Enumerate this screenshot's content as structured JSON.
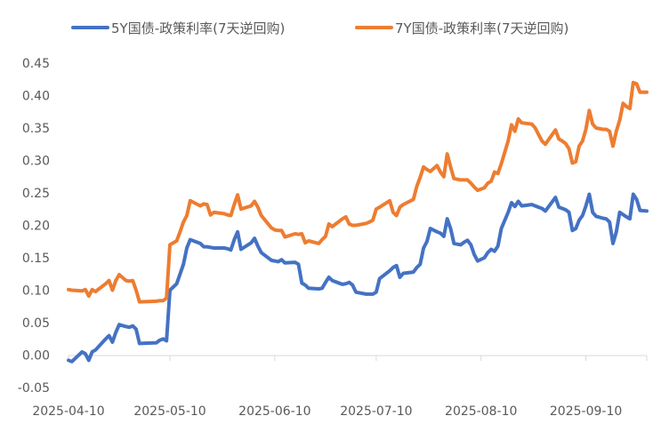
{
  "chart_data": {
    "type": "line",
    "title": "",
    "xlabel": "",
    "ylabel": "",
    "ylim": [
      -0.05,
      0.45
    ],
    "yticks": [
      "-0.05",
      "0.00",
      "0.05",
      "0.10",
      "0.15",
      "0.20",
      "0.25",
      "0.30",
      "0.35",
      "0.40",
      "0.45"
    ],
    "xticks": [
      "2025-04-10",
      "2025-05-10",
      "2025-06-10",
      "2025-07-10",
      "2025-08-10",
      "2025-09-10"
    ],
    "x_range": [
      "2025-04-10",
      "2025-09-28"
    ],
    "grid": false,
    "legend_position": "top",
    "series": [
      {
        "name": "5Y国债-政策利率(7天逆回购)",
        "color": "#4472C4",
        "points": [
          [
            "2025-04-10",
            -0.008
          ],
          [
            "2025-04-11",
            -0.01
          ],
          [
            "2025-04-14",
            0.005
          ],
          [
            "2025-04-15",
            0.002
          ],
          [
            "2025-04-16",
            -0.008
          ],
          [
            "2025-04-17",
            0.005
          ],
          [
            "2025-04-18",
            0.008
          ],
          [
            "2025-04-21",
            0.025
          ],
          [
            "2025-04-22",
            0.03
          ],
          [
            "2025-04-23",
            0.02
          ],
          [
            "2025-04-24",
            0.035
          ],
          [
            "2025-04-25",
            0.047
          ],
          [
            "2025-04-27",
            0.044
          ],
          [
            "2025-04-28",
            0.043
          ],
          [
            "2025-04-29",
            0.045
          ],
          [
            "2025-04-30",
            0.04
          ],
          [
            "2025-05-01",
            0.018
          ],
          [
            "2025-05-06",
            0.019
          ],
          [
            "2025-05-07",
            0.023
          ],
          [
            "2025-05-08",
            0.025
          ],
          [
            "2025-05-09",
            0.022
          ],
          [
            "2025-05-10",
            0.1
          ],
          [
            "2025-05-12",
            0.11
          ],
          [
            "2025-05-13",
            0.125
          ],
          [
            "2025-05-14",
            0.14
          ],
          [
            "2025-05-15",
            0.165
          ],
          [
            "2025-05-16",
            0.178
          ],
          [
            "2025-05-19",
            0.172
          ],
          [
            "2025-05-20",
            0.167
          ],
          [
            "2025-05-21",
            0.167
          ],
          [
            "2025-05-22",
            0.166
          ],
          [
            "2025-05-23",
            0.165
          ],
          [
            "2025-05-26",
            0.165
          ],
          [
            "2025-05-27",
            0.164
          ],
          [
            "2025-05-28",
            0.162
          ],
          [
            "2025-05-29",
            0.178
          ],
          [
            "2025-05-30",
            0.19
          ],
          [
            "2025-05-31",
            0.163
          ],
          [
            "2025-06-03",
            0.173
          ],
          [
            "2025-06-04",
            0.18
          ],
          [
            "2025-06-05",
            0.168
          ],
          [
            "2025-06-06",
            0.158
          ],
          [
            "2025-06-09",
            0.146
          ],
          [
            "2025-06-10",
            0.145
          ],
          [
            "2025-06-11",
            0.144
          ],
          [
            "2025-06-12",
            0.147
          ],
          [
            "2025-06-13",
            0.142
          ],
          [
            "2025-06-16",
            0.143
          ],
          [
            "2025-06-17",
            0.14
          ],
          [
            "2025-06-18",
            0.111
          ],
          [
            "2025-06-19",
            0.108
          ],
          [
            "2025-06-20",
            0.103
          ],
          [
            "2025-06-23",
            0.102
          ],
          [
            "2025-06-24",
            0.103
          ],
          [
            "2025-06-25",
            0.112
          ],
          [
            "2025-06-26",
            0.12
          ],
          [
            "2025-06-27",
            0.115
          ],
          [
            "2025-06-30",
            0.109
          ],
          [
            "2025-07-01",
            0.11
          ],
          [
            "2025-07-02",
            0.112
          ],
          [
            "2025-07-03",
            0.108
          ],
          [
            "2025-07-04",
            0.097
          ],
          [
            "2025-07-07",
            0.094
          ],
          [
            "2025-07-08",
            0.094
          ],
          [
            "2025-07-09",
            0.094
          ],
          [
            "2025-07-10",
            0.097
          ],
          [
            "2025-07-11",
            0.118
          ],
          [
            "2025-07-14",
            0.13
          ],
          [
            "2025-07-15",
            0.135
          ],
          [
            "2025-07-16",
            0.138
          ],
          [
            "2025-07-17",
            0.12
          ],
          [
            "2025-07-18",
            0.126
          ],
          [
            "2025-07-21",
            0.128
          ],
          [
            "2025-07-22",
            0.135
          ],
          [
            "2025-07-23",
            0.14
          ],
          [
            "2025-07-24",
            0.165
          ],
          [
            "2025-07-25",
            0.175
          ],
          [
            "2025-07-26",
            0.195
          ],
          [
            "2025-07-28",
            0.19
          ],
          [
            "2025-07-29",
            0.188
          ],
          [
            "2025-07-30",
            0.183
          ],
          [
            "2025-07-31",
            0.21
          ],
          [
            "2025-08-01",
            0.195
          ],
          [
            "2025-08-02",
            0.172
          ],
          [
            "2025-08-04",
            0.17
          ],
          [
            "2025-08-05",
            0.174
          ],
          [
            "2025-08-06",
            0.177
          ],
          [
            "2025-08-07",
            0.17
          ],
          [
            "2025-08-08",
            0.155
          ],
          [
            "2025-08-09",
            0.145
          ],
          [
            "2025-08-11",
            0.15
          ],
          [
            "2025-08-12",
            0.158
          ],
          [
            "2025-08-13",
            0.163
          ],
          [
            "2025-08-14",
            0.16
          ],
          [
            "2025-08-15",
            0.168
          ],
          [
            "2025-08-16",
            0.195
          ],
          [
            "2025-08-18",
            0.22
          ],
          [
            "2025-08-19",
            0.235
          ],
          [
            "2025-08-20",
            0.229
          ],
          [
            "2025-08-21",
            0.237
          ],
          [
            "2025-08-22",
            0.23
          ],
          [
            "2025-08-25",
            0.232
          ],
          [
            "2025-08-26",
            0.23
          ],
          [
            "2025-08-27",
            0.228
          ],
          [
            "2025-08-28",
            0.226
          ],
          [
            "2025-08-29",
            0.222
          ],
          [
            "2025-09-01",
            0.243
          ],
          [
            "2025-09-02",
            0.228
          ],
          [
            "2025-09-03",
            0.226
          ],
          [
            "2025-09-04",
            0.224
          ],
          [
            "2025-09-05",
            0.22
          ],
          [
            "2025-09-06",
            0.192
          ],
          [
            "2025-09-07",
            0.195
          ],
          [
            "2025-09-08",
            0.208
          ],
          [
            "2025-09-09",
            0.215
          ],
          [
            "2025-09-10",
            0.23
          ],
          [
            "2025-09-11",
            0.248
          ],
          [
            "2025-09-12",
            0.22
          ],
          [
            "2025-09-13",
            0.214
          ],
          [
            "2025-09-15",
            0.211
          ],
          [
            "2025-09-16",
            0.21
          ],
          [
            "2025-09-17",
            0.205
          ],
          [
            "2025-09-18",
            0.172
          ],
          [
            "2025-09-19",
            0.19
          ],
          [
            "2025-09-20",
            0.22
          ],
          [
            "2025-09-22",
            0.213
          ],
          [
            "2025-09-23",
            0.21
          ],
          [
            "2025-09-24",
            0.248
          ],
          [
            "2025-09-25",
            0.24
          ],
          [
            "2025-09-26",
            0.223
          ],
          [
            "2025-09-28",
            0.222
          ]
        ]
      },
      {
        "name": "7Y国债-政策利率(7天逆回购)",
        "color": "#ED7D31",
        "points": [
          [
            "2025-04-10",
            0.101
          ],
          [
            "2025-04-11",
            0.1
          ],
          [
            "2025-04-14",
            0.099
          ],
          [
            "2025-04-15",
            0.101
          ],
          [
            "2025-04-16",
            0.091
          ],
          [
            "2025-04-17",
            0.101
          ],
          [
            "2025-04-18",
            0.098
          ],
          [
            "2025-04-21",
            0.11
          ],
          [
            "2025-04-22",
            0.115
          ],
          [
            "2025-04-23",
            0.1
          ],
          [
            "2025-04-24",
            0.115
          ],
          [
            "2025-04-25",
            0.124
          ],
          [
            "2025-04-27",
            0.115
          ],
          [
            "2025-04-28",
            0.114
          ],
          [
            "2025-04-29",
            0.115
          ],
          [
            "2025-04-30",
            0.1
          ],
          [
            "2025-05-01",
            0.082
          ],
          [
            "2025-05-06",
            0.083
          ],
          [
            "2025-05-07",
            0.084
          ],
          [
            "2025-05-08",
            0.084
          ],
          [
            "2025-05-09",
            0.088
          ],
          [
            "2025-05-10",
            0.17
          ],
          [
            "2025-05-12",
            0.176
          ],
          [
            "2025-05-13",
            0.19
          ],
          [
            "2025-05-14",
            0.205
          ],
          [
            "2025-05-15",
            0.215
          ],
          [
            "2025-05-16",
            0.238
          ],
          [
            "2025-05-19",
            0.23
          ],
          [
            "2025-05-20",
            0.233
          ],
          [
            "2025-05-21",
            0.232
          ],
          [
            "2025-05-22",
            0.216
          ],
          [
            "2025-05-23",
            0.22
          ],
          [
            "2025-05-26",
            0.218
          ],
          [
            "2025-05-27",
            0.216
          ],
          [
            "2025-05-28",
            0.215
          ],
          [
            "2025-05-29",
            0.232
          ],
          [
            "2025-05-30",
            0.247
          ],
          [
            "2025-05-31",
            0.225
          ],
          [
            "2025-06-03",
            0.23
          ],
          [
            "2025-06-04",
            0.237
          ],
          [
            "2025-06-05",
            0.228
          ],
          [
            "2025-06-06",
            0.215
          ],
          [
            "2025-06-09",
            0.196
          ],
          [
            "2025-06-10",
            0.193
          ],
          [
            "2025-06-11",
            0.192
          ],
          [
            "2025-06-12",
            0.192
          ],
          [
            "2025-06-13",
            0.182
          ],
          [
            "2025-06-16",
            0.187
          ],
          [
            "2025-06-17",
            0.186
          ],
          [
            "2025-06-18",
            0.187
          ],
          [
            "2025-06-19",
            0.173
          ],
          [
            "2025-06-20",
            0.176
          ],
          [
            "2025-06-23",
            0.172
          ],
          [
            "2025-06-24",
            0.178
          ],
          [
            "2025-06-25",
            0.183
          ],
          [
            "2025-06-26",
            0.202
          ],
          [
            "2025-06-27",
            0.198
          ],
          [
            "2025-06-30",
            0.21
          ],
          [
            "2025-07-01",
            0.213
          ],
          [
            "2025-07-02",
            0.202
          ],
          [
            "2025-07-03",
            0.2
          ],
          [
            "2025-07-04",
            0.2
          ],
          [
            "2025-07-07",
            0.203
          ],
          [
            "2025-07-08",
            0.205
          ],
          [
            "2025-07-09",
            0.208
          ],
          [
            "2025-07-10",
            0.225
          ],
          [
            "2025-07-11",
            0.228
          ],
          [
            "2025-07-14",
            0.238
          ],
          [
            "2025-07-15",
            0.22
          ],
          [
            "2025-07-16",
            0.215
          ],
          [
            "2025-07-17",
            0.228
          ],
          [
            "2025-07-18",
            0.232
          ],
          [
            "2025-07-21",
            0.24
          ],
          [
            "2025-07-22",
            0.26
          ],
          [
            "2025-07-23",
            0.274
          ],
          [
            "2025-07-24",
            0.29
          ],
          [
            "2025-07-25",
            0.286
          ],
          [
            "2025-07-26",
            0.283
          ],
          [
            "2025-07-28",
            0.292
          ],
          [
            "2025-07-29",
            0.282
          ],
          [
            "2025-07-30",
            0.275
          ],
          [
            "2025-07-31",
            0.31
          ],
          [
            "2025-08-01",
            0.29
          ],
          [
            "2025-08-02",
            0.272
          ],
          [
            "2025-08-04",
            0.27
          ],
          [
            "2025-08-05",
            0.27
          ],
          [
            "2025-08-06",
            0.27
          ],
          [
            "2025-08-07",
            0.265
          ],
          [
            "2025-08-08",
            0.259
          ],
          [
            "2025-08-09",
            0.254
          ],
          [
            "2025-08-11",
            0.258
          ],
          [
            "2025-08-12",
            0.265
          ],
          [
            "2025-08-13",
            0.268
          ],
          [
            "2025-08-14",
            0.282
          ],
          [
            "2025-08-15",
            0.28
          ],
          [
            "2025-08-16",
            0.295
          ],
          [
            "2025-08-18",
            0.33
          ],
          [
            "2025-08-19",
            0.355
          ],
          [
            "2025-08-20",
            0.345
          ],
          [
            "2025-08-21",
            0.364
          ],
          [
            "2025-08-22",
            0.358
          ],
          [
            "2025-08-25",
            0.356
          ],
          [
            "2025-08-26",
            0.35
          ],
          [
            "2025-08-27",
            0.34
          ],
          [
            "2025-08-28",
            0.33
          ],
          [
            "2025-08-29",
            0.325
          ],
          [
            "2025-09-01",
            0.347
          ],
          [
            "2025-09-02",
            0.333
          ],
          [
            "2025-09-03",
            0.33
          ],
          [
            "2025-09-04",
            0.326
          ],
          [
            "2025-09-05",
            0.318
          ],
          [
            "2025-09-06",
            0.296
          ],
          [
            "2025-09-07",
            0.298
          ],
          [
            "2025-09-08",
            0.322
          ],
          [
            "2025-09-09",
            0.33
          ],
          [
            "2025-09-10",
            0.348
          ],
          [
            "2025-09-11",
            0.377
          ],
          [
            "2025-09-12",
            0.356
          ],
          [
            "2025-09-13",
            0.35
          ],
          [
            "2025-09-15",
            0.348
          ],
          [
            "2025-09-16",
            0.348
          ],
          [
            "2025-09-17",
            0.345
          ],
          [
            "2025-09-18",
            0.322
          ],
          [
            "2025-09-19",
            0.345
          ],
          [
            "2025-09-20",
            0.362
          ],
          [
            "2025-09-21",
            0.388
          ],
          [
            "2025-09-22",
            0.383
          ],
          [
            "2025-09-23",
            0.38
          ],
          [
            "2025-09-24",
            0.42
          ],
          [
            "2025-09-25",
            0.418
          ],
          [
            "2025-09-26",
            0.405
          ],
          [
            "2025-09-28",
            0.405
          ]
        ]
      }
    ]
  }
}
